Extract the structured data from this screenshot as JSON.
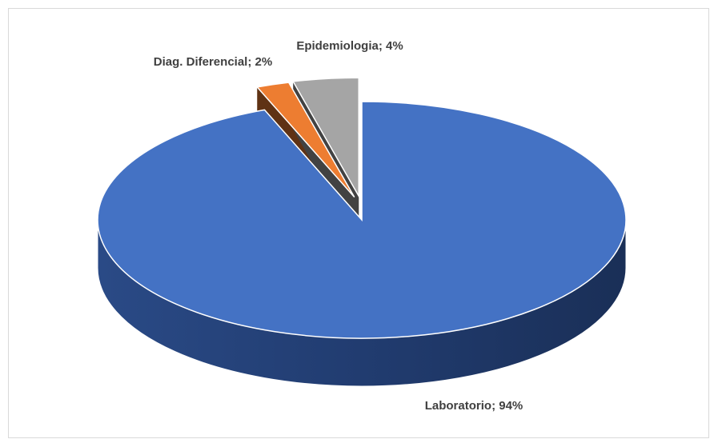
{
  "chart_data": {
    "type": "pie",
    "categories": [
      "Laboratorio",
      "Diag. Diferencial",
      "Epidemiologia"
    ],
    "values": [
      94,
      2,
      4
    ],
    "value_labels": [
      "94%",
      "2%",
      "4%"
    ],
    "label_separator": ";",
    "colors": [
      "#4472c4",
      "#ed7d31",
      "#a5a5a5"
    ],
    "exploded": [
      false,
      true,
      true
    ]
  }
}
